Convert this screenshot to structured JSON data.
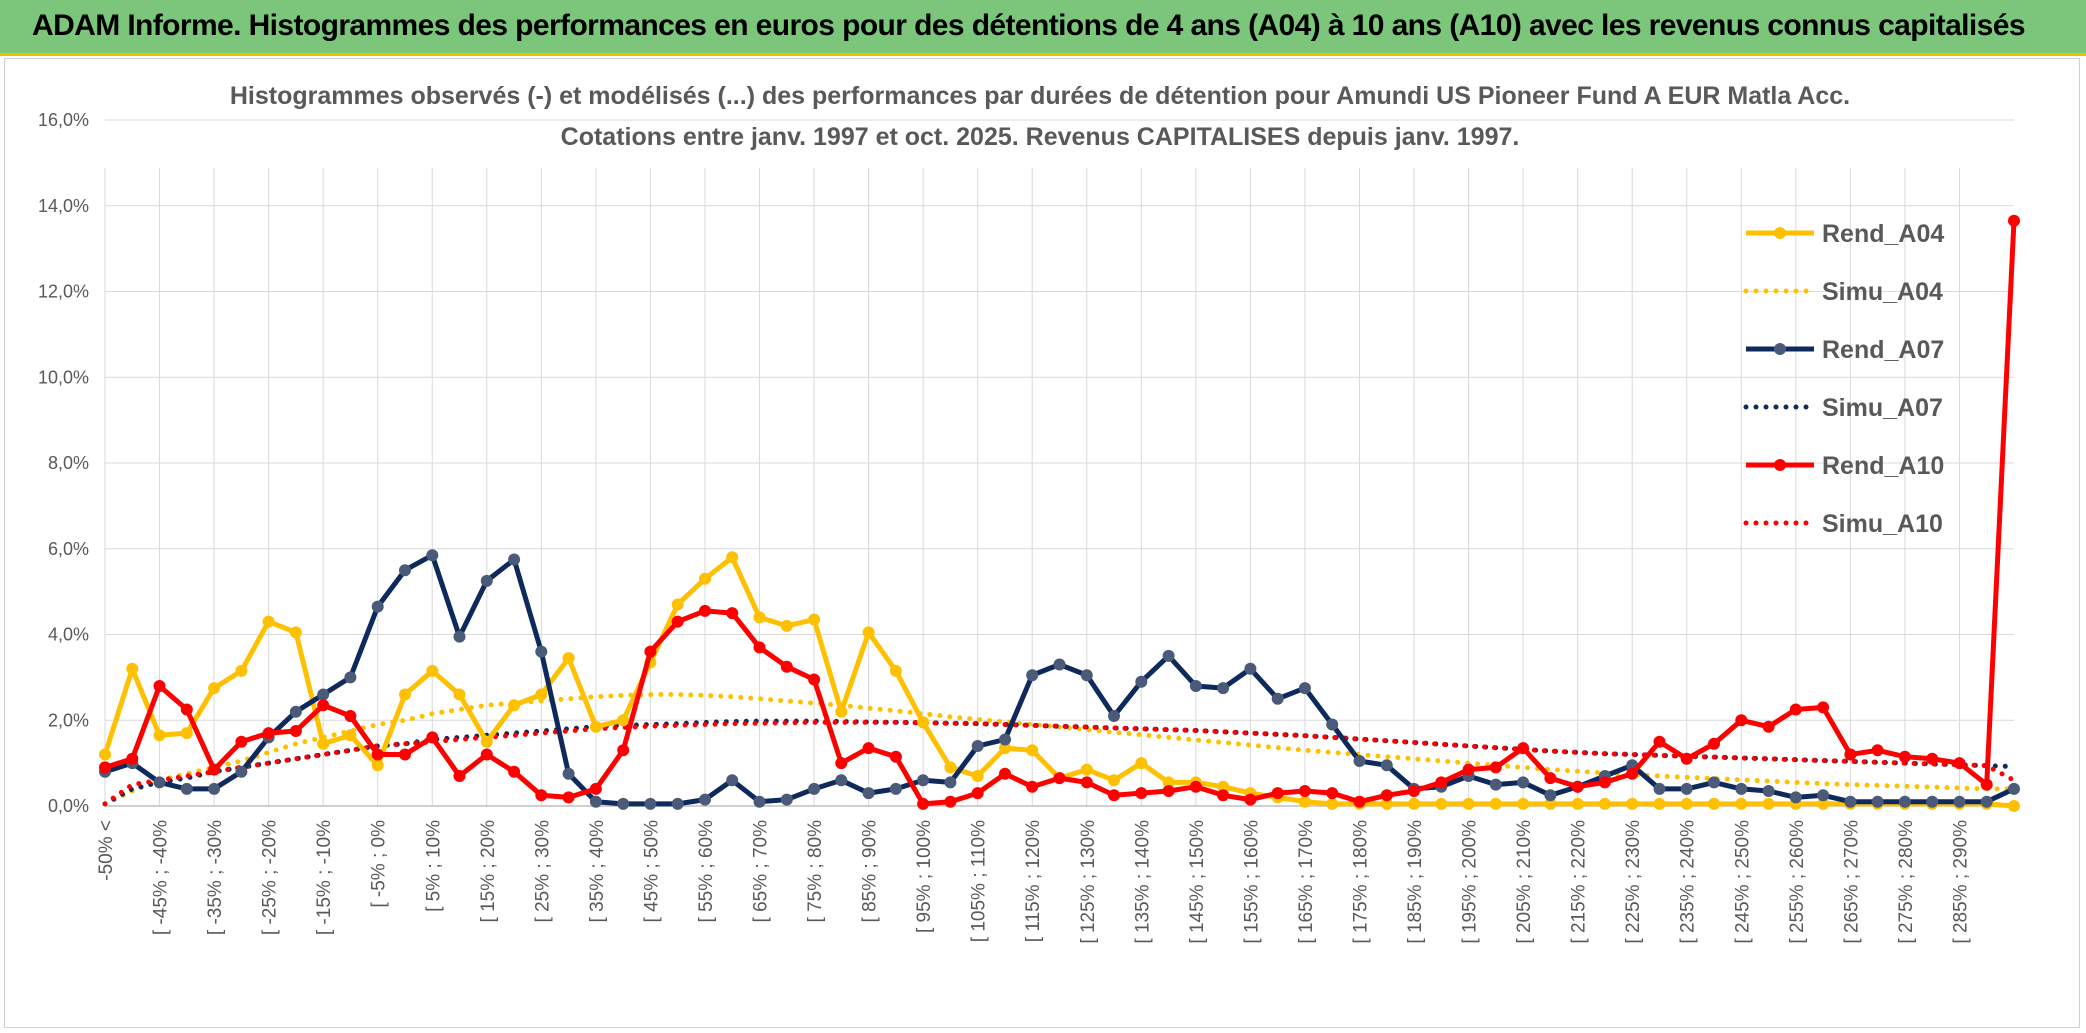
{
  "banner": {
    "title": "ADAM Informe. Histogrammes des performances en euros pour des détentions de 4 ans (A04) à 10 ans (A10) avec les revenus connus capitalisés"
  },
  "colors": {
    "banner_bg": "#7bc67b",
    "A04": "#ffc000",
    "A07": "#0e2a5c",
    "A10": "#ff0000",
    "grid": "#d9d9d9"
  },
  "chart_data": {
    "type": "line",
    "title": "Histogrammes observés (-) et modélisés (...) des performances par durées de détention pour Amundi US Pioneer Fund A EUR Matla Acc.",
    "subtitle": "Cotations entre janv. 1997 et oct. 2025. Revenus CAPITALISES depuis janv. 1997.",
    "ylim": [
      0,
      16
    ],
    "yticks": [
      "0,0%",
      "2,0%",
      "4,0%",
      "6,0%",
      "8,0%",
      "10,0%",
      "12,0%",
      "14,0%",
      "16,0%"
    ],
    "categories": [
      "-50% <",
      "[ -50% ; -45%",
      "[ -45% ; -40%",
      "[ -40% ; -35%",
      "[ -35% ; -30%",
      "[ -30% ; -25%",
      "[ -25% ; -20%",
      "[ -20% ; -15%",
      "[ -15% ; -10%",
      "[ -10% ; -5%",
      "[ -5% ; 0%",
      "[ 0% ; 5%",
      "[ 5% ; 10%",
      "[ 10% ; 15%",
      "[ 15% ; 20%",
      "[ 20% ; 25%",
      "[ 25% ; 30%",
      "[ 30% ; 35%",
      "[ 35% ; 40%",
      "[ 40% ; 45%",
      "[ 45% ; 50%",
      "[ 50% ; 55%",
      "[ 55% ; 60%",
      "[ 60% ; 65%",
      "[ 65% ; 70%",
      "[ 70% ; 75%",
      "[ 75% ; 80%",
      "[ 80% ; 85%",
      "[ 85% ; 90%",
      "[ 90% ; 95%",
      "[ 95% ; 100%",
      "[ 100% ; 105%",
      "[ 105% ; 110%",
      "[ 110% ; 115%",
      "[ 115% ; 120%",
      "[ 120% ; 125%",
      "[ 125% ; 130%",
      "[ 130% ; 135%",
      "[ 135% ; 140%",
      "[ 140% ; 145%",
      "[ 145% ; 150%",
      "[ 150% ; 155%",
      "[ 155% ; 160%",
      "[ 160% ; 165%",
      "[ 165% ; 170%",
      "[ 170% ; 175%",
      "[ 175% ; 180%",
      "[ 180% ; 185%",
      "[ 185% ; 190%",
      "[ 190% ; 195%",
      "[ 195% ; 200%",
      "[ 200% ; 205%",
      "[ 205% ; 210%",
      "[ 210% ; 215%",
      "[ 215% ; 220%",
      "[ 220% ; 225%",
      "[ 225% ; 230%",
      "[ 230% ; 235%",
      "[ 235% ; 240%",
      "[ 240% ; 245%",
      "[ 245% ; 250%",
      "[ 250% ; 255%",
      "[ 255% ; 260%",
      "[ 260% ; 265%",
      "[ 265% ; 270%",
      "[ 270% ; 275%",
      "[ 275% ; 280%",
      "[ 280% ; 285%",
      "[ 285% ; 290%",
      "[ 290% ; 295%",
      ">= 295%"
    ],
    "visible_tick_labels": [
      "-50% <",
      "[ -45% ; -40%",
      "[ -35% ; -30%",
      "[ -25% ; -20%",
      "[ -15% ; -10%",
      "[ -5% ; 0%",
      "[ 5% ; 10%",
      "[ 15% ; 20%",
      "[ 25% ; 30%",
      "[ 35% ; 40%",
      "[ 45% ; 50%",
      "[ 55% ; 60%",
      "[ 65% ; 70%",
      "[ 75% ; 80%",
      "[ 85% ; 90%",
      "[ 95% ; 100%",
      "[ 105% ; 110%",
      "[ 115% ; 120%",
      "[ 125% ; 130%",
      "[ 135% ; 140%",
      "[ 145% ; 150%",
      "[ 155% ; 160%",
      "[ 165% ; 170%",
      "[ 175% ; 180%",
      "[ 185% ; 190%",
      "[ 195% ; 200%",
      "[ 205% ; 210%",
      "[ 215% ; 220%",
      "[ 225% ; 230%",
      "[ 235% ; 240%",
      "[ 245% ; 250%",
      "[ 255% ; 260%",
      "[ 265% ; 270%",
      "[ 275% ; 280%",
      "[ 285% ; 290%"
    ],
    "legend_position": "right",
    "series": [
      {
        "name": "Rend_A04",
        "style": "solid",
        "color": "#ffc000",
        "values": [
          1.2,
          3.2,
          1.65,
          1.7,
          2.75,
          3.15,
          4.3,
          4.05,
          1.45,
          1.65,
          0.95,
          2.6,
          3.15,
          2.6,
          1.5,
          2.35,
          2.6,
          3.45,
          1.85,
          2.0,
          3.35,
          4.7,
          5.3,
          5.8,
          4.4,
          4.2,
          4.35,
          2.2,
          4.05,
          3.15,
          1.95,
          0.9,
          0.7,
          1.35,
          1.3,
          0.65,
          0.85,
          0.6,
          1.0,
          0.55,
          0.55,
          0.45,
          0.3,
          0.2,
          0.1,
          0.05,
          0.05,
          0.05,
          0.05,
          0.05,
          0.05,
          0.05,
          0.05,
          0.05,
          0.05,
          0.05,
          0.05,
          0.05,
          0.05,
          0.05,
          0.05,
          0.05,
          0.05,
          0.05,
          0.05,
          0.05,
          0.05,
          0.05,
          0.05,
          0.05,
          0.0
        ]
      },
      {
        "name": "Simu_A04",
        "style": "dotted",
        "color": "#ffc000",
        "values": [
          0.05,
          0.35,
          0.6,
          0.75,
          0.9,
          1.05,
          1.25,
          1.45,
          1.6,
          1.75,
          1.9,
          2.0,
          2.15,
          2.25,
          2.35,
          2.4,
          2.45,
          2.5,
          2.55,
          2.58,
          2.6,
          2.6,
          2.58,
          2.55,
          2.5,
          2.45,
          2.4,
          2.35,
          2.28,
          2.22,
          2.15,
          2.08,
          2.02,
          1.96,
          1.9,
          1.84,
          1.78,
          1.72,
          1.66,
          1.6,
          1.54,
          1.48,
          1.42,
          1.36,
          1.3,
          1.25,
          1.2,
          1.15,
          1.1,
          1.05,
          1.0,
          0.95,
          0.9,
          0.85,
          0.81,
          0.77,
          0.73,
          0.7,
          0.67,
          0.64,
          0.61,
          0.58,
          0.55,
          0.52,
          0.5,
          0.48,
          0.46,
          0.44,
          0.42,
          0.4,
          0.4
        ]
      },
      {
        "name": "Rend_A07",
        "style": "solid",
        "color": "#0e2a5c",
        "values": [
          0.8,
          1.0,
          0.55,
          0.4,
          0.4,
          0.8,
          1.6,
          2.2,
          2.6,
          3.0,
          4.65,
          5.5,
          5.85,
          3.95,
          5.25,
          5.75,
          3.6,
          0.75,
          0.1,
          0.05,
          0.05,
          0.05,
          0.15,
          0.6,
          0.1,
          0.15,
          0.4,
          0.6,
          0.3,
          0.4,
          0.6,
          0.55,
          1.4,
          1.55,
          3.05,
          3.3,
          3.05,
          2.1,
          2.9,
          3.5,
          2.8,
          2.75,
          3.2,
          2.5,
          2.75,
          1.9,
          1.05,
          0.95,
          0.4,
          0.45,
          0.7,
          0.5,
          0.55,
          0.25,
          0.45,
          0.7,
          0.95,
          0.4,
          0.4,
          0.55,
          0.4,
          0.35,
          0.2,
          0.25,
          0.1,
          0.1,
          0.1,
          0.1,
          0.1,
          0.1,
          0.4
        ]
      },
      {
        "name": "Simu_A07",
        "style": "dotted",
        "color": "#0e2a5c",
        "values": [
          0.05,
          0.4,
          0.55,
          0.65,
          0.8,
          0.9,
          1.0,
          1.1,
          1.2,
          1.3,
          1.4,
          1.45,
          1.55,
          1.6,
          1.65,
          1.7,
          1.75,
          1.8,
          1.85,
          1.88,
          1.9,
          1.92,
          1.95,
          1.97,
          1.98,
          1.98,
          1.98,
          1.97,
          1.96,
          1.95,
          1.94,
          1.93,
          1.92,
          1.9,
          1.88,
          1.86,
          1.84,
          1.82,
          1.8,
          1.78,
          1.76,
          1.73,
          1.7,
          1.67,
          1.64,
          1.6,
          1.56,
          1.52,
          1.48,
          1.44,
          1.4,
          1.36,
          1.32,
          1.28,
          1.25,
          1.22,
          1.2,
          1.18,
          1.16,
          1.14,
          1.12,
          1.1,
          1.08,
          1.06,
          1.04,
          1.02,
          1.0,
          0.98,
          0.96,
          0.94,
          0.92
        ]
      },
      {
        "name": "Rend_A10",
        "style": "solid",
        "color": "#ff0000",
        "values": [
          0.9,
          1.1,
          2.8,
          2.25,
          0.85,
          1.5,
          1.7,
          1.75,
          2.35,
          2.1,
          1.2,
          1.2,
          1.6,
          0.7,
          1.2,
          0.8,
          0.25,
          0.2,
          0.4,
          1.3,
          3.6,
          4.3,
          4.55,
          4.5,
          3.7,
          3.25,
          2.95,
          1.0,
          1.35,
          1.15,
          0.05,
          0.1,
          0.3,
          0.75,
          0.45,
          0.65,
          0.55,
          0.25,
          0.3,
          0.35,
          0.45,
          0.25,
          0.15,
          0.3,
          0.35,
          0.3,
          0.1,
          0.25,
          0.35,
          0.55,
          0.85,
          0.9,
          1.35,
          0.65,
          0.45,
          0.55,
          0.75,
          1.5,
          1.1,
          1.45,
          2.0,
          1.85,
          2.25,
          2.3,
          1.2,
          1.3,
          1.15,
          1.1,
          1.0,
          0.5,
          13.65
        ]
      },
      {
        "name": "Simu_A10",
        "style": "dotted",
        "color": "#ff0000",
        "values": [
          0.05,
          0.5,
          0.6,
          0.7,
          0.8,
          0.9,
          1.0,
          1.1,
          1.2,
          1.3,
          1.4,
          1.45,
          1.5,
          1.55,
          1.6,
          1.65,
          1.7,
          1.75,
          1.8,
          1.83,
          1.86,
          1.88,
          1.9,
          1.92,
          1.93,
          1.94,
          1.95,
          1.95,
          1.95,
          1.95,
          1.94,
          1.93,
          1.92,
          1.9,
          1.88,
          1.86,
          1.84,
          1.82,
          1.8,
          1.78,
          1.76,
          1.73,
          1.7,
          1.67,
          1.64,
          1.6,
          1.56,
          1.52,
          1.48,
          1.44,
          1.4,
          1.36,
          1.32,
          1.28,
          1.25,
          1.22,
          1.2,
          1.18,
          1.16,
          1.14,
          1.12,
          1.1,
          1.08,
          1.06,
          1.04,
          1.02,
          1.0,
          0.98,
          0.96,
          0.94,
          0.6
        ]
      }
    ]
  }
}
